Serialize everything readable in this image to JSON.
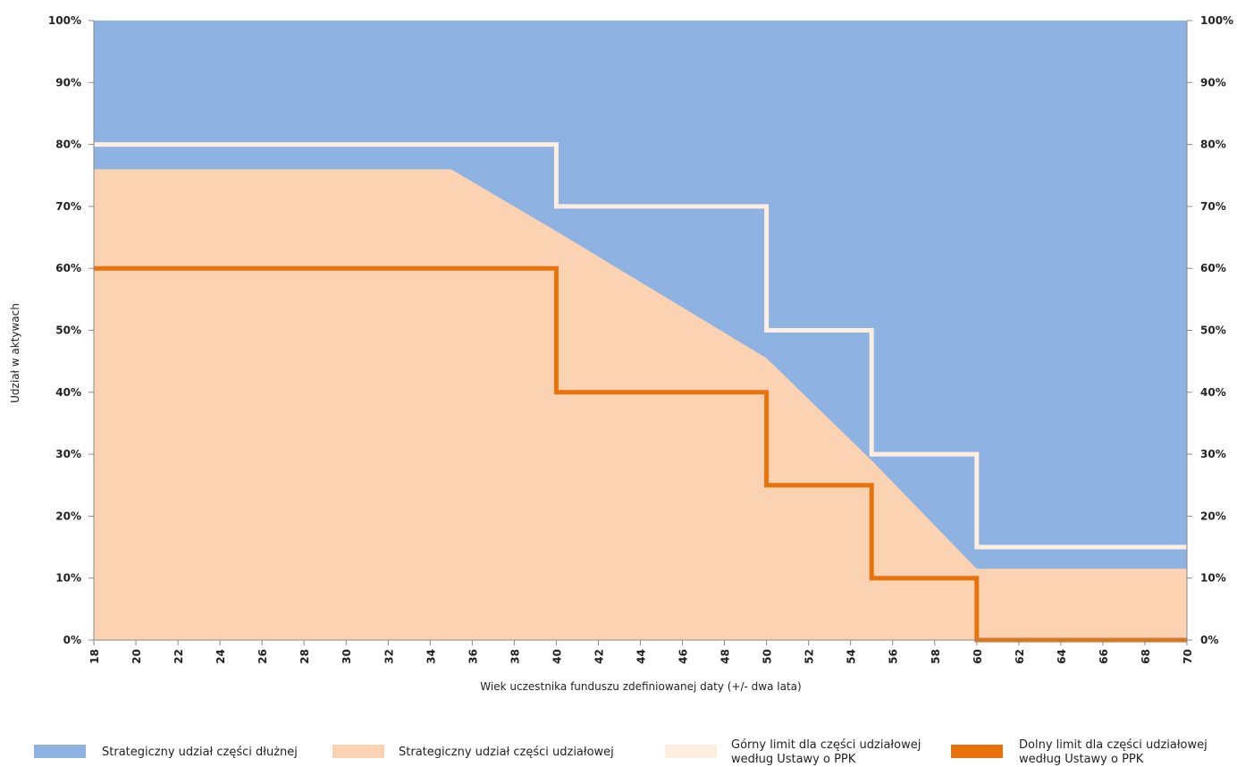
{
  "chart_data": {
    "type": "area",
    "xlabel": "Wiek uczestnika funduszu zdefiniowanej daty (+/- dwa lata)",
    "ylabel": "Udział w aktywach",
    "xlim": [
      18,
      70
    ],
    "ylim": [
      0,
      100
    ],
    "x_ticks": [
      18,
      20,
      22,
      24,
      26,
      28,
      30,
      32,
      34,
      36,
      38,
      40,
      42,
      44,
      46,
      48,
      50,
      52,
      54,
      56,
      58,
      60,
      62,
      64,
      66,
      68,
      70
    ],
    "y_ticks": [
      "0%",
      "10%",
      "20%",
      "30%",
      "40%",
      "50%",
      "60%",
      "70%",
      "80%",
      "90%",
      "100%"
    ],
    "series": [
      {
        "name": "Strategiczny udział części dłużnej",
        "kind": "area",
        "color": "#8eb2e2",
        "note": "complement of equity share up to 100%"
      },
      {
        "name": "Strategiczny udział części udziałowej",
        "kind": "area",
        "color": "#fbd3b2",
        "points": [
          [
            18,
            76
          ],
          [
            35,
            76
          ],
          [
            40,
            66
          ],
          [
            50,
            45.5
          ],
          [
            55,
            29
          ],
          [
            60,
            11.5
          ],
          [
            70,
            11.5
          ]
        ]
      },
      {
        "name": "Górny limit dla części udziałowej\nwedług Ustawy o PPK",
        "kind": "step-line",
        "color": "#fdeee0",
        "points": [
          [
            18,
            80
          ],
          [
            40,
            80
          ],
          [
            40,
            70
          ],
          [
            50,
            70
          ],
          [
            50,
            50
          ],
          [
            55,
            50
          ],
          [
            55,
            30
          ],
          [
            60,
            30
          ],
          [
            60,
            15
          ],
          [
            70,
            15
          ]
        ]
      },
      {
        "name": "Dolny limit dla części udziałowej\nwedług Ustawy o PPK",
        "kind": "step-line",
        "color": "#e8720c",
        "points": [
          [
            18,
            60
          ],
          [
            40,
            60
          ],
          [
            40,
            40
          ],
          [
            50,
            40
          ],
          [
            50,
            25
          ],
          [
            55,
            25
          ],
          [
            55,
            10
          ],
          [
            60,
            10
          ],
          [
            60,
            0
          ],
          [
            70,
            0
          ]
        ]
      }
    ],
    "legend_position": "bottom"
  },
  "legend": {
    "items": [
      {
        "line1": "Strategiczny udział części dłużnej",
        "line2": "",
        "color": "#8eb2e2"
      },
      {
        "line1": "Strategiczny udział części udziałowej",
        "line2": "",
        "color": "#fbd3b2"
      },
      {
        "line1": "Górny limit dla części udziałowej",
        "line2": "według Ustawy o PPK",
        "color": "#fdeee0"
      },
      {
        "line1": "Dolny limit dla części udziałowej",
        "line2": "według Ustawy o PPK",
        "color": "#e8720c"
      }
    ]
  }
}
